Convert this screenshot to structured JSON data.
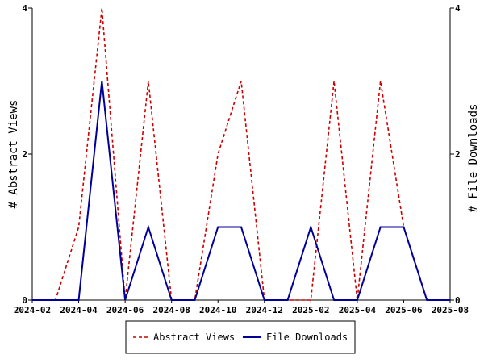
{
  "chart_data": {
    "type": "line",
    "x": [
      "2024-02",
      "2024-03",
      "2024-04",
      "2024-05",
      "2024-06",
      "2024-07",
      "2024-08",
      "2024-09",
      "2024-10",
      "2024-11",
      "2024-12",
      "2025-01",
      "2025-02",
      "2025-03",
      "2025-04",
      "2025-05",
      "2025-06",
      "2025-07",
      "2025-08"
    ],
    "x_tick_labels": [
      "2024-02",
      "2024-04",
      "2024-06",
      "2024-08",
      "2024-10",
      "2024-12",
      "2025-02",
      "2025-04",
      "2025-06",
      "2025-08"
    ],
    "series": [
      {
        "name": "Abstract Views",
        "color": "#cc0000",
        "style": "dashed",
        "axis": "left",
        "values": [
          0,
          0,
          1,
          4,
          0,
          3,
          0,
          0,
          2,
          3,
          0,
          0,
          0,
          3,
          0,
          3,
          1,
          0,
          0
        ]
      },
      {
        "name": "File Downloads",
        "color": "#000099",
        "style": "solid",
        "axis": "right",
        "values": [
          0,
          0,
          0,
          3,
          0,
          1,
          0,
          0,
          1,
          1,
          0,
          0,
          1,
          0,
          0,
          1,
          1,
          0,
          0
        ]
      }
    ],
    "ylabel": "# Abstract Views",
    "ylabel_right": "# File Downloads",
    "ylim": [
      0,
      4
    ],
    "y_ticks": [
      0,
      2,
      4
    ],
    "legend_position": "bottom"
  }
}
